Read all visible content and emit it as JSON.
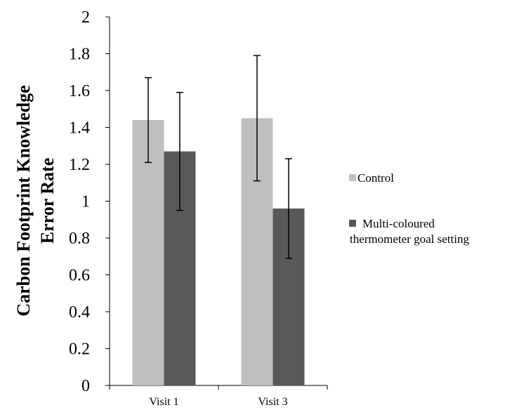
{
  "chart_data": {
    "type": "bar",
    "categories": [
      "Visit 1",
      "Visit 3"
    ],
    "series": [
      {
        "name": "Control",
        "values": [
          1.44,
          1.45
        ],
        "error_low": [
          1.21,
          1.11
        ],
        "error_high": [
          1.67,
          1.79
        ],
        "color": "#bfbfbf"
      },
      {
        "name": "Multi-coloured thermometer goal setting",
        "values": [
          1.27,
          0.96
        ],
        "error_low": [
          0.95,
          0.69
        ],
        "error_high": [
          1.59,
          1.23
        ],
        "color": "#595959"
      }
    ],
    "ylabel_lines": [
      "Carbon Footprint Knowledge",
      "Error Rate"
    ],
    "ylim": [
      0,
      2
    ],
    "yticks": [
      "0",
      "0.2",
      "0.4",
      "0.6",
      "0.8",
      "1",
      "1.2",
      "1.4",
      "1.6",
      "1.8",
      "2"
    ],
    "legend_lines": [
      [
        "Control"
      ],
      [
        "Multi-coloured",
        "thermometer goal setting"
      ]
    ],
    "legend_position": "right",
    "grid": false
  }
}
